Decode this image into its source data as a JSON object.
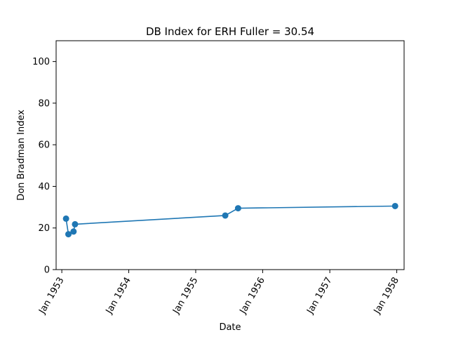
{
  "chart_data": {
    "type": "line",
    "title": "DB Index for ERH Fuller = 30.54",
    "xlabel": "Date",
    "ylabel": "Don Bradman Index",
    "xlim": [
      "1952-12-01",
      "1958-02-10"
    ],
    "ylim": [
      0,
      110
    ],
    "yticks": [
      0,
      20,
      40,
      60,
      80,
      100
    ],
    "xticks": [
      {
        "date": "1953-01-01",
        "label": "Jan 1953"
      },
      {
        "date": "1954-01-01",
        "label": "Jan 1954"
      },
      {
        "date": "1955-01-01",
        "label": "Jan 1955"
      },
      {
        "date": "1956-01-01",
        "label": "Jan 1956"
      },
      {
        "date": "1957-01-01",
        "label": "Jan 1957"
      },
      {
        "date": "1958-01-01",
        "label": "Jan 1958"
      }
    ],
    "grid": false,
    "series": [
      {
        "color": "#1f77b4",
        "marker": "circle",
        "points": [
          {
            "x": "1953-01-24",
            "y": 24.5
          },
          {
            "x": "1953-02-06",
            "y": 17.0
          },
          {
            "x": "1953-03-06",
            "y": 18.3
          },
          {
            "x": "1953-03-14",
            "y": 21.8
          },
          {
            "x": "1955-06-11",
            "y": 26.0
          },
          {
            "x": "1955-08-20",
            "y": 29.5
          },
          {
            "x": "1957-12-23",
            "y": 30.54
          }
        ]
      }
    ]
  }
}
